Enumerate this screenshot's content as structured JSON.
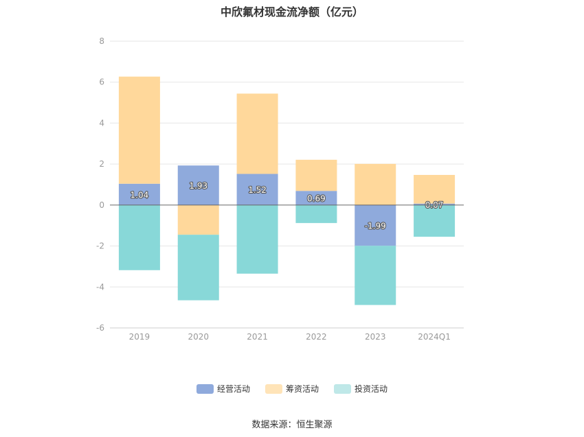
{
  "title": "中欣氟材现金流净额（亿元）",
  "source_text": "数据来源：恒生聚源",
  "chart_data": {
    "type": "bar",
    "stacked": true,
    "title": "中欣氟材现金流净额（亿元）",
    "categories": [
      "2019",
      "2020",
      "2021",
      "2022",
      "2023",
      "2024Q1"
    ],
    "ylim": [
      -6,
      8
    ],
    "yticks": [
      8,
      6,
      4,
      2,
      0,
      -2,
      -4,
      -6
    ],
    "grid": true,
    "legend_position": "bottom",
    "series": [
      {
        "name": "经营活动",
        "color": "#8faadc",
        "values": [
          1.04,
          1.93,
          1.52,
          0.69,
          -1.99,
          0.07
        ],
        "labels": [
          "1.04",
          "1.93",
          "1.52",
          "0.69",
          "-1.99",
          "0.07"
        ]
      },
      {
        "name": "筹资活动",
        "color": "#ffd89b",
        "values": [
          5.23,
          -1.45,
          3.92,
          1.52,
          2.01,
          1.4
        ]
      },
      {
        "name": "投资活动",
        "color": "#88d8d8",
        "values": [
          -3.18,
          -3.2,
          -3.35,
          -0.88,
          -2.89,
          -1.55
        ]
      }
    ]
  }
}
